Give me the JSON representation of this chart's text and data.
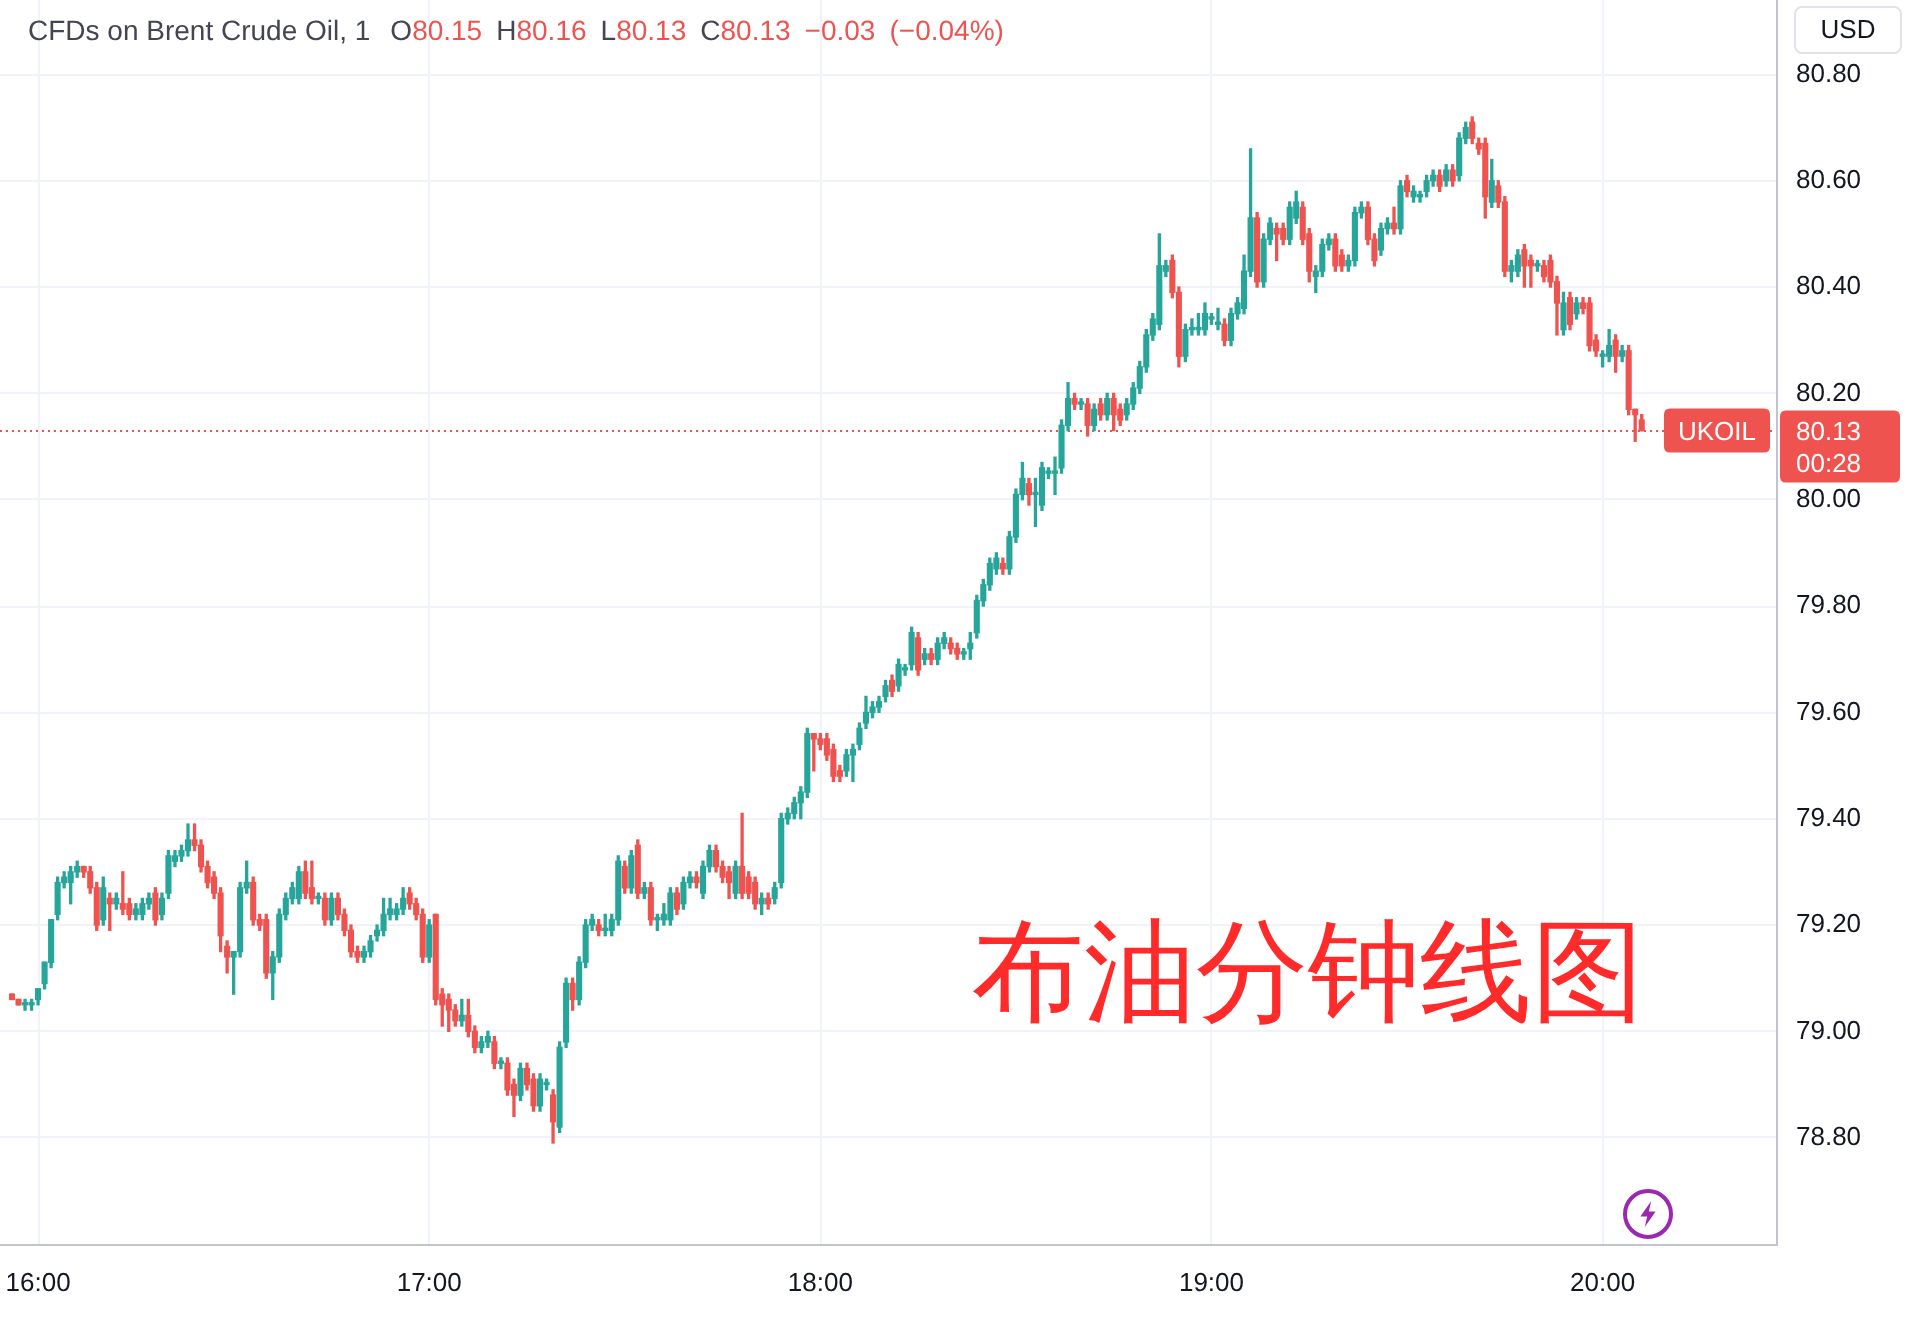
{
  "chart_data": {
    "type": "candlestick",
    "title": "CFDs on Brent Crude Oil, 1",
    "subtitle": "O80.15 H80.16 L80.13 C80.13 −0.03 (−0.04%)",
    "ylabel": "USD",
    "annotations": [
      "80.13",
      "00:28",
      "布油分钟线图"
    ],
    "categories": [
      null,
      null,
      null,
      null,
      "16:00",
      null,
      null,
      null,
      null,
      null,
      null,
      null,
      null,
      null,
      null,
      null,
      null,
      null,
      null,
      null,
      null,
      null,
      null,
      null,
      null,
      null,
      null,
      null,
      null,
      null,
      null,
      null,
      null,
      null,
      null,
      null,
      null,
      null,
      null,
      null,
      null,
      null,
      null,
      null,
      null,
      null,
      null,
      null,
      null,
      null,
      null,
      null,
      null,
      null,
      null,
      null,
      null,
      null,
      null,
      null,
      null,
      null,
      null,
      null,
      "17:00",
      null,
      null,
      null,
      null,
      null,
      null,
      null,
      null,
      null,
      null,
      null,
      null,
      null,
      null,
      null,
      null,
      null,
      null,
      null,
      null,
      null,
      null,
      null,
      null,
      null,
      null,
      null,
      null,
      null,
      null,
      null,
      null,
      null,
      null,
      null,
      null,
      null,
      null,
      null,
      null,
      null,
      null,
      null,
      null,
      null,
      null,
      null,
      null,
      null,
      null,
      null,
      null,
      null,
      null,
      null,
      null,
      null,
      null,
      null,
      "18:00",
      null,
      null,
      null,
      null,
      null,
      null,
      null,
      null,
      null,
      null,
      null,
      null,
      null,
      null,
      null,
      null,
      null,
      null,
      null,
      null,
      null,
      null,
      null,
      null,
      null,
      null,
      null,
      null,
      null,
      null,
      null,
      null,
      null,
      null,
      null,
      null,
      null,
      null,
      null,
      null,
      null,
      null,
      null,
      null,
      null,
      null,
      null,
      null,
      null,
      null,
      null,
      null,
      null,
      null,
      null,
      null,
      null,
      null,
      null,
      "19:00",
      null,
      null,
      null,
      null,
      null,
      null,
      null,
      null,
      null,
      null,
      null,
      null,
      null,
      null,
      null,
      null,
      null,
      null,
      null,
      null,
      null,
      null,
      null,
      null,
      null,
      null,
      null,
      null,
      null,
      null,
      null,
      null,
      null,
      null,
      null,
      null,
      null,
      null,
      null,
      null,
      null,
      null,
      null,
      null,
      null,
      null,
      null,
      null,
      null,
      null,
      null,
      null,
      null,
      null,
      null,
      null,
      null,
      null,
      null,
      "20:00",
      null,
      null,
      null,
      null,
      null,
      null,
      null,
      null,
      null,
      null,
      null,
      null,
      null,
      null,
      null,
      null,
      null,
      null,
      null,
      null,
      null,
      null,
      null,
      null,
      null,
      null
    ],
    "ohlc": [
      [
        79.07,
        79.07,
        79.06,
        79.06
      ],
      [
        79.06,
        79.06,
        79.05,
        79.05
      ],
      [
        79.05,
        79.06,
        79.04,
        79.05
      ],
      [
        79.05,
        79.06,
        79.04,
        79.05
      ],
      [
        79.06,
        79.08,
        79.05,
        79.08
      ],
      [
        79.09,
        79.13,
        79.08,
        79.13
      ],
      [
        79.13,
        79.21,
        79.12,
        79.21
      ],
      [
        79.22,
        79.29,
        79.21,
        79.28
      ],
      [
        79.28,
        79.3,
        79.27,
        79.29
      ],
      [
        79.28,
        79.31,
        79.24,
        79.3
      ],
      [
        79.3,
        79.32,
        79.29,
        79.31
      ],
      [
        79.31,
        79.31,
        79.29,
        79.3
      ],
      [
        79.3,
        79.31,
        79.26,
        79.27
      ],
      [
        79.27,
        79.28,
        79.19,
        79.2
      ],
      [
        79.21,
        79.29,
        79.2,
        79.27
      ],
      [
        79.25,
        79.26,
        79.19,
        79.24
      ],
      [
        79.24,
        79.26,
        79.23,
        79.25
      ],
      [
        79.24,
        79.3,
        79.22,
        79.23
      ],
      [
        79.24,
        79.25,
        79.21,
        79.22
      ],
      [
        79.22,
        79.24,
        79.21,
        79.23
      ],
      [
        79.22,
        79.25,
        79.21,
        79.24
      ],
      [
        79.24,
        79.26,
        79.23,
        79.25
      ],
      [
        79.26,
        79.27,
        79.2,
        79.21
      ],
      [
        79.22,
        79.26,
        79.21,
        79.25
      ],
      [
        79.26,
        79.34,
        79.25,
        79.33
      ],
      [
        79.32,
        79.34,
        79.31,
        79.33
      ],
      [
        79.33,
        79.35,
        79.32,
        79.34
      ],
      [
        79.34,
        79.39,
        79.33,
        79.36
      ],
      [
        79.36,
        79.39,
        79.34,
        79.35
      ],
      [
        79.35,
        79.36,
        79.3,
        79.31
      ],
      [
        79.31,
        79.32,
        79.27,
        79.28
      ],
      [
        79.29,
        79.3,
        79.25,
        79.26
      ],
      [
        79.26,
        79.27,
        79.15,
        79.18
      ],
      [
        79.16,
        79.17,
        79.11,
        79.14
      ],
      [
        79.14,
        79.15,
        79.07,
        79.15
      ],
      [
        79.15,
        79.28,
        79.14,
        79.27
      ],
      [
        79.27,
        79.32,
        79.26,
        79.28
      ],
      [
        79.28,
        79.29,
        79.2,
        79.21
      ],
      [
        79.21,
        79.22,
        79.19,
        79.2
      ],
      [
        79.21,
        79.22,
        79.1,
        79.11
      ],
      [
        79.11,
        79.15,
        79.06,
        79.14
      ],
      [
        79.14,
        79.23,
        79.13,
        79.22
      ],
      [
        79.22,
        79.26,
        79.21,
        79.25
      ],
      [
        79.25,
        79.28,
        79.24,
        79.27
      ],
      [
        79.25,
        79.31,
        79.24,
        79.3
      ],
      [
        79.3,
        79.32,
        79.25,
        79.26
      ],
      [
        79.27,
        79.32,
        79.24,
        79.25
      ],
      [
        79.25,
        79.26,
        79.24,
        79.25
      ],
      [
        79.25,
        79.26,
        79.2,
        79.21
      ],
      [
        79.21,
        79.26,
        79.2,
        79.25
      ],
      [
        79.25,
        79.26,
        79.21,
        79.22
      ],
      [
        79.22,
        79.23,
        79.18,
        79.19
      ],
      [
        79.19,
        79.2,
        79.14,
        79.15
      ],
      [
        79.15,
        79.16,
        79.13,
        79.14
      ],
      [
        79.14,
        79.16,
        79.13,
        79.15
      ],
      [
        79.15,
        79.18,
        79.14,
        79.17
      ],
      [
        79.18,
        79.2,
        79.17,
        79.19
      ],
      [
        79.19,
        79.25,
        79.18,
        79.22
      ],
      [
        79.22,
        79.25,
        79.21,
        79.23
      ],
      [
        79.22,
        79.24,
        79.21,
        79.23
      ],
      [
        79.23,
        79.27,
        79.22,
        79.25
      ],
      [
        79.26,
        79.27,
        79.23,
        79.24
      ],
      [
        79.24,
        79.25,
        79.21,
        79.22
      ],
      [
        79.22,
        79.23,
        79.13,
        79.14
      ],
      [
        79.14,
        79.21,
        79.13,
        79.2
      ],
      [
        79.22,
        79.22,
        79.05,
        79.06
      ],
      [
        79.07,
        79.08,
        79.01,
        79.05
      ],
      [
        79.06,
        79.07,
        79.0,
        79.04
      ],
      [
        79.04,
        79.05,
        79.01,
        79.02
      ],
      [
        79.02,
        79.06,
        79.01,
        79.03
      ],
      [
        79.03,
        79.06,
        78.99,
        79.0
      ],
      [
        79.0,
        79.01,
        78.96,
        78.97
      ],
      [
        78.97,
        78.99,
        78.96,
        78.98
      ],
      [
        78.98,
        79.0,
        78.97,
        78.99
      ],
      [
        78.98,
        78.99,
        78.93,
        78.94
      ],
      [
        78.94,
        78.95,
        78.93,
        78.94
      ],
      [
        78.94,
        78.95,
        78.88,
        78.89
      ],
      [
        78.9,
        78.91,
        78.84,
        78.88
      ],
      [
        78.88,
        78.94,
        78.87,
        78.93
      ],
      [
        78.93,
        78.94,
        78.89,
        78.9
      ],
      [
        78.91,
        78.92,
        78.85,
        78.86
      ],
      [
        78.86,
        78.92,
        78.85,
        78.91
      ],
      [
        78.9,
        78.91,
        78.89,
        78.9
      ],
      [
        78.88,
        78.89,
        78.79,
        78.83
      ],
      [
        78.82,
        78.98,
        78.81,
        78.97
      ],
      [
        78.98,
        79.1,
        78.97,
        79.09
      ],
      [
        79.09,
        79.1,
        79.04,
        79.06
      ],
      [
        79.06,
        79.14,
        79.05,
        79.13
      ],
      [
        79.13,
        79.21,
        79.12,
        79.2
      ],
      [
        79.2,
        79.22,
        79.19,
        79.21
      ],
      [
        79.2,
        79.21,
        79.18,
        79.19
      ],
      [
        79.19,
        79.22,
        79.18,
        79.19
      ],
      [
        79.19,
        79.22,
        79.18,
        79.21
      ],
      [
        79.21,
        79.33,
        79.2,
        79.32
      ],
      [
        79.31,
        79.32,
        79.26,
        79.27
      ],
      [
        79.27,
        79.34,
        79.26,
        79.33
      ],
      [
        79.35,
        79.36,
        79.25,
        79.26
      ],
      [
        79.26,
        79.28,
        79.25,
        79.27
      ],
      [
        79.27,
        79.28,
        79.2,
        79.21
      ],
      [
        79.21,
        79.22,
        79.19,
        79.21
      ],
      [
        79.21,
        79.24,
        79.2,
        79.22
      ],
      [
        79.21,
        79.27,
        79.2,
        79.26
      ],
      [
        79.26,
        79.27,
        79.22,
        79.23
      ],
      [
        79.24,
        79.29,
        79.23,
        79.28
      ],
      [
        79.28,
        79.3,
        79.27,
        79.29
      ],
      [
        79.29,
        79.3,
        79.27,
        79.28
      ],
      [
        79.26,
        79.32,
        79.25,
        79.31
      ],
      [
        79.31,
        79.35,
        79.3,
        79.34
      ],
      [
        79.34,
        79.35,
        79.3,
        79.31
      ],
      [
        79.31,
        79.32,
        79.28,
        79.29
      ],
      [
        79.3,
        79.31,
        79.25,
        79.28
      ],
      [
        79.26,
        79.32,
        79.25,
        79.31
      ],
      [
        79.31,
        79.41,
        79.25,
        79.26
      ],
      [
        79.29,
        79.3,
        79.25,
        79.26
      ],
      [
        79.28,
        79.29,
        79.23,
        79.24
      ],
      [
        79.24,
        79.26,
        79.22,
        79.25
      ],
      [
        79.25,
        79.26,
        79.23,
        79.24
      ],
      [
        79.25,
        79.28,
        79.24,
        79.27
      ],
      [
        79.28,
        79.41,
        79.27,
        79.4
      ],
      [
        79.4,
        79.42,
        79.39,
        79.41
      ],
      [
        79.41,
        79.44,
        79.4,
        79.43
      ],
      [
        79.43,
        79.46,
        79.4,
        79.45
      ],
      [
        79.45,
        79.57,
        79.44,
        79.56
      ],
      [
        79.56,
        79.56,
        79.49,
        79.55
      ],
      [
        79.55,
        79.56,
        79.53,
        79.54
      ],
      [
        79.55,
        79.56,
        79.51,
        79.52
      ],
      [
        79.53,
        79.54,
        79.47,
        79.48
      ],
      [
        79.49,
        79.5,
        79.47,
        79.48
      ],
      [
        79.49,
        79.53,
        79.48,
        79.52
      ],
      [
        79.52,
        79.54,
        79.47,
        79.53
      ],
      [
        79.54,
        79.58,
        79.53,
        79.57
      ],
      [
        79.58,
        79.63,
        79.57,
        79.6
      ],
      [
        79.6,
        79.62,
        79.59,
        79.61
      ],
      [
        79.61,
        79.63,
        79.6,
        79.62
      ],
      [
        79.63,
        79.66,
        79.62,
        79.65
      ],
      [
        79.66,
        79.67,
        79.63,
        79.64
      ],
      [
        79.65,
        79.7,
        79.64,
        79.69
      ],
      [
        79.68,
        79.69,
        79.67,
        79.68
      ],
      [
        79.69,
        79.76,
        79.68,
        79.75
      ],
      [
        79.74,
        79.75,
        79.67,
        79.68
      ],
      [
        79.7,
        79.72,
        79.69,
        79.71
      ],
      [
        79.71,
        79.72,
        79.69,
        79.7
      ],
      [
        79.7,
        79.74,
        79.69,
        79.73
      ],
      [
        79.73,
        79.75,
        79.72,
        79.74
      ],
      [
        79.73,
        79.74,
        79.71,
        79.72
      ],
      [
        79.72,
        79.73,
        79.7,
        79.71
      ],
      [
        79.71,
        79.72,
        79.7,
        79.71
      ],
      [
        79.72,
        79.75,
        79.7,
        79.73
      ],
      [
        79.75,
        79.82,
        79.74,
        79.81
      ],
      [
        79.81,
        79.85,
        79.8,
        79.84
      ],
      [
        79.84,
        79.89,
        79.83,
        79.88
      ],
      [
        79.87,
        79.9,
        79.86,
        79.89
      ],
      [
        79.88,
        79.89,
        79.86,
        79.87
      ],
      [
        79.87,
        79.94,
        79.86,
        79.93
      ],
      [
        79.93,
        80.02,
        79.92,
        80.01
      ],
      [
        80.01,
        80.07,
        80.0,
        80.04
      ],
      [
        80.03,
        80.04,
        79.99,
        80.01
      ],
      [
        80.01,
        80.04,
        79.95,
        80.01
      ],
      [
        79.99,
        80.07,
        79.98,
        80.06
      ],
      [
        80.05,
        80.06,
        80.04,
        80.05
      ],
      [
        80.05,
        80.08,
        80.01,
        80.05
      ],
      [
        80.06,
        80.15,
        80.05,
        80.14
      ],
      [
        80.14,
        80.22,
        80.13,
        80.19
      ],
      [
        80.19,
        80.2,
        80.17,
        80.18
      ],
      [
        80.18,
        80.19,
        80.17,
        80.18
      ],
      [
        80.18,
        80.19,
        80.12,
        80.14
      ],
      [
        80.14,
        80.18,
        80.13,
        80.17
      ],
      [
        80.18,
        80.19,
        80.15,
        80.16
      ],
      [
        80.16,
        80.2,
        80.15,
        80.19
      ],
      [
        80.19,
        80.2,
        80.13,
        80.16
      ],
      [
        80.17,
        80.18,
        80.14,
        80.15
      ],
      [
        80.16,
        80.19,
        80.15,
        80.18
      ],
      [
        80.18,
        80.22,
        80.17,
        80.21
      ],
      [
        80.21,
        80.26,
        80.2,
        80.25
      ],
      [
        80.25,
        80.32,
        80.24,
        80.31
      ],
      [
        80.31,
        80.35,
        80.3,
        80.34
      ],
      [
        80.33,
        80.5,
        80.32,
        80.44
      ],
      [
        80.43,
        80.45,
        80.42,
        80.44
      ],
      [
        80.45,
        80.46,
        80.38,
        80.39
      ],
      [
        80.39,
        80.4,
        80.25,
        80.27
      ],
      [
        80.27,
        80.33,
        80.26,
        80.32
      ],
      [
        80.32,
        80.34,
        80.31,
        80.32
      ],
      [
        80.32,
        80.35,
        80.31,
        80.32
      ],
      [
        80.32,
        80.37,
        80.31,
        80.35
      ],
      [
        80.34,
        80.35,
        80.33,
        80.34
      ],
      [
        80.33,
        80.36,
        80.32,
        80.33
      ],
      [
        80.33,
        80.34,
        80.29,
        80.3
      ],
      [
        80.3,
        80.36,
        80.29,
        80.35
      ],
      [
        80.35,
        80.38,
        80.34,
        80.37
      ],
      [
        80.36,
        80.46,
        80.35,
        80.43
      ],
      [
        80.43,
        80.66,
        80.42,
        80.53
      ],
      [
        80.53,
        80.54,
        80.4,
        80.41
      ],
      [
        80.41,
        80.5,
        80.4,
        80.49
      ],
      [
        80.49,
        80.53,
        80.48,
        80.52
      ],
      [
        80.51,
        80.52,
        80.45,
        80.5
      ],
      [
        80.51,
        80.52,
        80.48,
        80.49
      ],
      [
        80.49,
        80.56,
        80.48,
        80.55
      ],
      [
        80.53,
        80.58,
        80.52,
        80.56
      ],
      [
        80.55,
        80.56,
        80.48,
        80.49
      ],
      [
        80.5,
        80.51,
        80.41,
        80.43
      ],
      [
        80.42,
        80.44,
        80.39,
        80.43
      ],
      [
        80.43,
        80.49,
        80.42,
        80.48
      ],
      [
        80.48,
        80.5,
        80.47,
        80.49
      ],
      [
        80.49,
        80.5,
        80.43,
        80.44
      ],
      [
        80.46,
        80.47,
        80.43,
        80.44
      ],
      [
        80.44,
        80.46,
        80.43,
        80.45
      ],
      [
        80.45,
        80.55,
        80.44,
        80.54
      ],
      [
        80.54,
        80.56,
        80.53,
        80.55
      ],
      [
        80.55,
        80.56,
        80.48,
        80.49
      ],
      [
        80.49,
        80.5,
        80.44,
        80.45
      ],
      [
        80.47,
        80.52,
        80.46,
        80.51
      ],
      [
        80.51,
        80.53,
        80.5,
        80.52
      ],
      [
        80.52,
        80.55,
        80.5,
        80.51
      ],
      [
        80.51,
        80.6,
        80.5,
        80.59
      ],
      [
        80.6,
        80.61,
        80.57,
        80.58
      ],
      [
        80.57,
        80.59,
        80.56,
        80.58
      ],
      [
        80.57,
        80.58,
        80.56,
        80.57
      ],
      [
        80.58,
        80.61,
        80.57,
        80.6
      ],
      [
        80.6,
        80.62,
        80.59,
        80.61
      ],
      [
        80.61,
        80.62,
        80.58,
        80.59
      ],
      [
        80.6,
        80.63,
        80.59,
        80.62
      ],
      [
        80.62,
        80.63,
        80.59,
        80.6
      ],
      [
        80.61,
        80.69,
        80.6,
        80.68
      ],
      [
        80.68,
        80.71,
        80.67,
        80.7
      ],
      [
        80.71,
        80.72,
        80.67,
        80.68
      ],
      [
        80.67,
        80.68,
        80.65,
        80.66
      ],
      [
        80.67,
        80.68,
        80.53,
        80.57
      ],
      [
        80.56,
        80.64,
        80.55,
        80.6
      ],
      [
        80.59,
        80.6,
        80.55,
        80.56
      ],
      [
        80.56,
        80.57,
        80.42,
        80.43
      ],
      [
        80.43,
        80.45,
        80.41,
        80.44
      ],
      [
        80.43,
        80.47,
        80.42,
        80.46
      ],
      [
        80.47,
        80.48,
        80.4,
        80.44
      ],
      [
        80.45,
        80.46,
        80.4,
        80.44
      ],
      [
        80.44,
        80.45,
        80.43,
        80.44
      ],
      [
        80.44,
        80.45,
        80.41,
        80.42
      ],
      [
        80.45,
        80.46,
        80.4,
        80.41
      ],
      [
        80.41,
        80.42,
        80.31,
        80.37
      ],
      [
        80.32,
        80.39,
        80.31,
        80.37
      ],
      [
        80.38,
        80.39,
        80.32,
        80.33
      ],
      [
        80.35,
        80.38,
        80.34,
        80.37
      ],
      [
        80.37,
        80.38,
        80.35,
        80.36
      ],
      [
        80.37,
        80.38,
        80.28,
        80.29
      ],
      [
        80.3,
        80.31,
        80.27,
        80.28
      ],
      [
        80.27,
        80.28,
        80.25,
        80.27
      ],
      [
        80.27,
        80.32,
        80.26,
        80.29
      ],
      [
        80.3,
        80.31,
        80.24,
        80.27
      ],
      [
        80.27,
        80.29,
        80.26,
        80.28
      ],
      [
        80.28,
        80.29,
        80.16,
        80.17
      ],
      [
        80.17,
        80.17,
        80.11,
        80.16
      ],
      [
        80.15,
        80.16,
        80.13,
        80.13
      ],
      null,
      null,
      null,
      null,
      null,
      null,
      null,
      null,
      null,
      null,
      null,
      null,
      null,
      null,
      null,
      null,
      null,
      null,
      null,
      null
    ],
    "colors": [
      "#ef5350",
      "#ef5350",
      "#26a69a",
      "#26a69a",
      "#26a69a",
      "#26a69a",
      "#26a69a",
      "#26a69a",
      "#26a69a",
      "#26a69a",
      "#26a69a",
      "#ef5350",
      "#ef5350",
      "#ef5350",
      "#26a69a",
      "#ef5350",
      "#26a69a",
      "#ef5350",
      "#ef5350",
      "#26a69a",
      "#26a69a",
      "#26a69a",
      "#ef5350",
      "#26a69a",
      "#26a69a",
      "#26a69a",
      "#26a69a",
      "#26a69a",
      "#ef5350",
      "#ef5350",
      "#ef5350",
      "#ef5350",
      "#ef5350",
      "#ef5350",
      "#26a69a",
      "#26a69a",
      "#26a69a",
      "#ef5350",
      "#ef5350",
      "#ef5350",
      "#26a69a",
      "#26a69a",
      "#26a69a",
      "#26a69a",
      "#26a69a",
      "#ef5350",
      "#ef5350",
      "#26a69a",
      "#ef5350",
      "#26a69a",
      "#ef5350",
      "#ef5350",
      "#ef5350",
      "#ef5350",
      "#26a69a",
      "#26a69a",
      "#26a69a",
      "#26a69a",
      "#26a69a",
      "#26a69a",
      "#26a69a",
      "#ef5350",
      "#ef5350",
      "#ef5350",
      "#26a69a",
      "#ef5350",
      "#ef5350",
      "#ef5350",
      "#ef5350",
      "#26a69a",
      "#ef5350",
      "#ef5350",
      "#26a69a",
      "#26a69a",
      "#ef5350",
      "#26a69a",
      "#ef5350",
      "#ef5350",
      "#26a69a",
      "#ef5350",
      "#ef5350",
      "#26a69a",
      "#26a69a",
      "#ef5350",
      "#26a69a",
      "#26a69a",
      "#ef5350",
      "#26a69a",
      "#26a69a",
      "#26a69a",
      "#ef5350",
      "#26a69a",
      "#26a69a",
      "#26a69a",
      "#ef5350",
      "#26a69a",
      "#ef5350",
      "#26a69a",
      "#ef5350",
      "#26a69a",
      "#26a69a",
      "#26a69a",
      "#ef5350",
      "#26a69a",
      "#26a69a",
      "#ef5350",
      "#26a69a",
      "#26a69a",
      "#ef5350",
      "#ef5350",
      "#ef5350",
      "#26a69a",
      "#ef5350",
      "#ef5350",
      "#ef5350",
      "#26a69a",
      "#ef5350",
      "#26a69a",
      "#26a69a",
      "#26a69a",
      "#26a69a",
      "#26a69a",
      "#26a69a",
      "#ef5350",
      "#ef5350",
      "#ef5350",
      "#ef5350",
      "#ef5350",
      "#26a69a",
      "#26a69a",
      "#26a69a",
      "#26a69a",
      "#26a69a",
      "#26a69a",
      "#26a69a",
      "#ef5350",
      "#26a69a",
      "#26a69a",
      "#26a69a",
      "#ef5350",
      "#26a69a",
      "#ef5350",
      "#26a69a",
      "#26a69a",
      "#ef5350",
      "#ef5350",
      "#26a69a",
      "#26a69a",
      "#26a69a",
      "#26a69a",
      "#26a69a",
      "#26a69a",
      "#ef5350",
      "#26a69a",
      "#26a69a",
      "#26a69a",
      "#ef5350",
      "#26a69a",
      "#26a69a",
      "#26a69a",
      "#26a69a",
      "#26a69a",
      "#26a69a",
      "#ef5350",
      "#26a69a",
      "#ef5350",
      "#26a69a",
      "#ef5350",
      "#26a69a",
      "#ef5350",
      "#ef5350",
      "#26a69a",
      "#26a69a",
      "#26a69a",
      "#26a69a",
      "#26a69a",
      "#26a69a",
      "#26a69a",
      "#ef5350",
      "#ef5350",
      "#26a69a",
      "#26a69a",
      "#26a69a",
      "#26a69a",
      "#26a69a",
      "#26a69a",
      "#ef5350",
      "#26a69a",
      "#26a69a",
      "#26a69a",
      "#26a69a",
      "#ef5350",
      "#26a69a",
      "#26a69a",
      "#ef5350",
      "#ef5350",
      "#26a69a",
      "#26a69a",
      "#ef5350",
      "#ef5350",
      "#26a69a",
      "#26a69a",
      "#26a69a",
      "#ef5350",
      "#ef5350",
      "#26a69a",
      "#26a69a",
      "#26a69a",
      "#ef5350",
      "#ef5350",
      "#26a69a",
      "#26a69a",
      "#ef5350",
      "#26a69a",
      "#ef5350",
      "#26a69a",
      "#26a69a",
      "#26a69a",
      "#26a69a",
      "#ef5350",
      "#26a69a",
      "#ef5350",
      "#26a69a",
      "#26a69a",
      "#ef5350",
      "#ef5350",
      "#ef5350",
      "#26a69a",
      "#ef5350",
      "#ef5350",
      "#26a69a",
      "#26a69a",
      "#ef5350",
      "#ef5350",
      "#26a69a",
      "#ef5350",
      "#ef5350",
      "#ef5350",
      "#26a69a",
      "#ef5350",
      "#26a69a",
      "#ef5350",
      "#ef5350",
      "#ef5350",
      "#26a69a",
      "#26a69a",
      "#ef5350",
      "#26a69a",
      "#ef5350",
      "#ef5350",
      "#ef5350",
      null,
      null,
      null,
      null,
      null,
      null,
      null,
      null,
      null,
      null,
      null,
      null,
      null,
      null,
      null,
      null,
      null,
      null,
      null,
      null
    ],
    "ylim": [
      78.6,
      80.94
    ],
    "yticks": [
      {
        "value": 78.8,
        "label": "78.80"
      },
      {
        "value": 79,
        "label": "79.00"
      },
      {
        "value": 79.2,
        "label": "79.20"
      },
      {
        "value": 79.4,
        "label": "79.40"
      },
      {
        "value": 79.6,
        "label": "79.60"
      },
      {
        "value": 79.8,
        "label": "79.80"
      },
      {
        "value": 80,
        "label": "80.00"
      },
      {
        "value": 80.2,
        "label": "80.20"
      },
      {
        "value": 80.4,
        "label": "80.40"
      },
      {
        "value": 80.6,
        "label": "80.60"
      },
      {
        "value": 80.8,
        "label": "80.80"
      }
    ],
    "grid": true,
    "ref_lines": [
      {
        "axis": "y",
        "value": 80.13,
        "label": "UKOIL",
        "color": "#ef5350",
        "line_style": "dotted"
      }
    ]
  }
}
